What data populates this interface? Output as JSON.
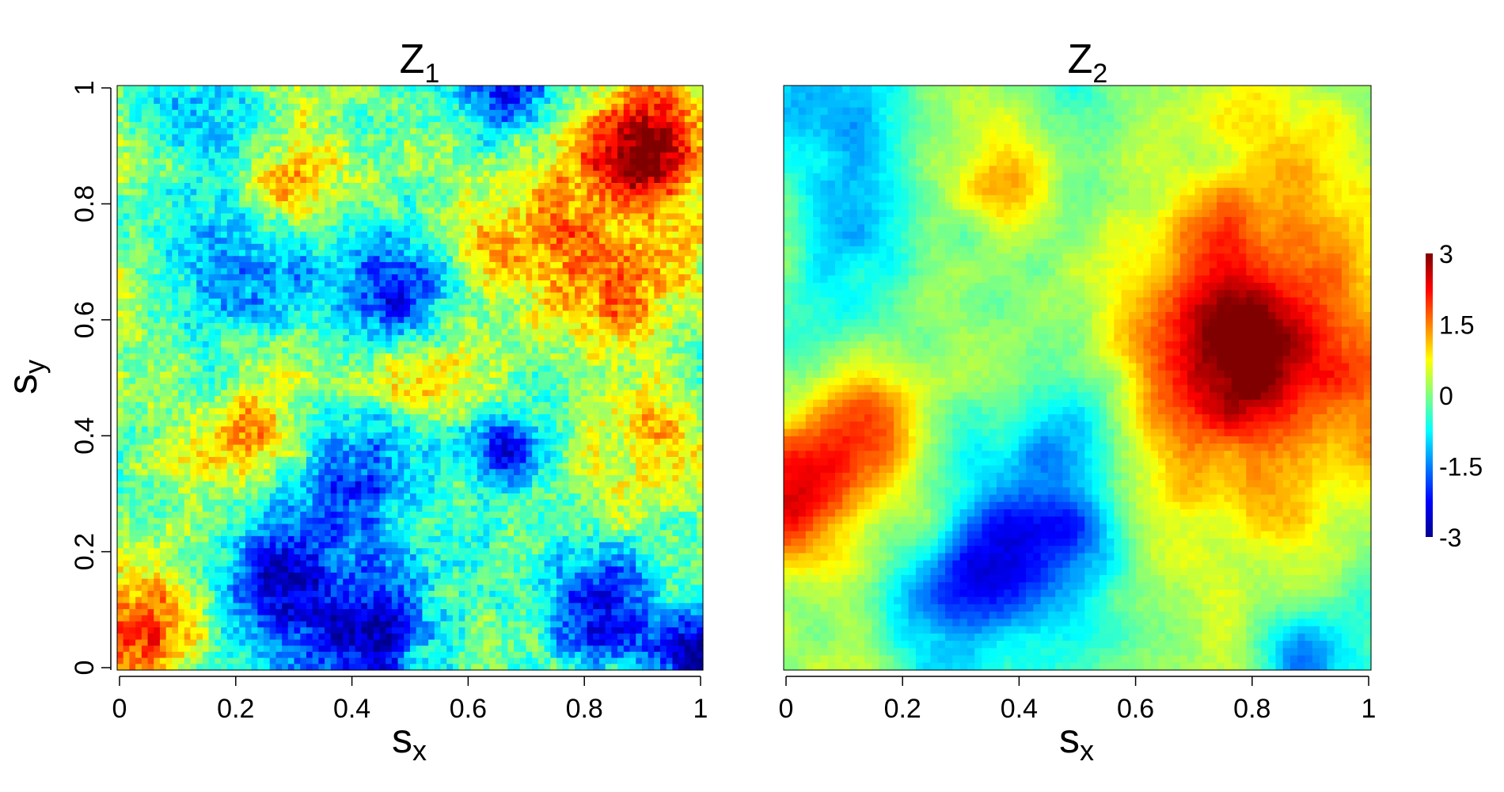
{
  "chart_data": [
    {
      "type": "heatmap",
      "title": "Z",
      "title_subscript": "1",
      "xlabel": "s",
      "xlabel_subscript": "x",
      "ylabel": "s",
      "ylabel_subscript": "y",
      "xlim": [
        0,
        1
      ],
      "ylim": [
        0,
        1
      ],
      "x_ticks": [
        "0",
        "0.2",
        "0.4",
        "0.6",
        "0.8",
        "1"
      ],
      "y_ticks": [
        "0",
        "0.2",
        "0.4",
        "0.6",
        "0.8",
        "1"
      ],
      "grid": false,
      "texture": "rough",
      "field_features": [
        {
          "x": 0.91,
          "y": 0.9,
          "value": 2.8,
          "spread": 0.07
        },
        {
          "x": 0.3,
          "y": 0.84,
          "value": 1.6,
          "spread": 0.07
        },
        {
          "x": 0.8,
          "y": 0.7,
          "value": 1.7,
          "spread": 0.12
        },
        {
          "x": 0.05,
          "y": 0.08,
          "value": 1.9,
          "spread": 0.07
        },
        {
          "x": 0.23,
          "y": 0.4,
          "value": 1.2,
          "spread": 0.06
        },
        {
          "x": 0.5,
          "y": 0.5,
          "value": 1.0,
          "spread": 0.05
        },
        {
          "x": 0.95,
          "y": 0.4,
          "value": 1.0,
          "spread": 0.06
        },
        {
          "x": 0.65,
          "y": 0.98,
          "value": -2.2,
          "spread": 0.06
        },
        {
          "x": 0.22,
          "y": 0.72,
          "value": -1.8,
          "spread": 0.08
        },
        {
          "x": 0.45,
          "y": 0.64,
          "value": -2.3,
          "spread": 0.07
        },
        {
          "x": 0.28,
          "y": 0.15,
          "value": -2.1,
          "spread": 0.08
        },
        {
          "x": 0.42,
          "y": 0.05,
          "value": -2.5,
          "spread": 0.07
        },
        {
          "x": 0.4,
          "y": 0.28,
          "value": -1.8,
          "spread": 0.1
        },
        {
          "x": 0.68,
          "y": 0.38,
          "value": -2.0,
          "spread": 0.05
        },
        {
          "x": 0.83,
          "y": 0.1,
          "value": -2.3,
          "spread": 0.08
        },
        {
          "x": 0.98,
          "y": 0.03,
          "value": -2.5,
          "spread": 0.05
        },
        {
          "x": 0.18,
          "y": 0.95,
          "value": -1.2,
          "spread": 0.08
        }
      ]
    },
    {
      "type": "heatmap",
      "title": "Z",
      "title_subscript": "2",
      "xlabel": "s",
      "xlabel_subscript": "x",
      "xlim": [
        0,
        1
      ],
      "ylim": [
        0,
        1
      ],
      "x_ticks": [
        "0",
        "0.2",
        "0.4",
        "0.6",
        "0.8",
        "1"
      ],
      "grid": false,
      "texture": "smooth",
      "field_features": [
        {
          "x": 0.84,
          "y": 0.55,
          "value": 2.3,
          "spread": 0.2
        },
        {
          "x": 0.77,
          "y": 0.52,
          "value": 1.4,
          "spread": 0.08
        },
        {
          "x": 0.86,
          "y": 0.88,
          "value": 0.7,
          "spread": 0.1
        },
        {
          "x": 0.05,
          "y": 0.32,
          "value": 2.4,
          "spread": 0.09
        },
        {
          "x": 0.15,
          "y": 0.45,
          "value": 1.3,
          "spread": 0.07
        },
        {
          "x": 0.37,
          "y": 0.82,
          "value": 1.2,
          "spread": 0.06
        },
        {
          "x": 0.42,
          "y": 0.22,
          "value": -2.2,
          "spread": 0.1
        },
        {
          "x": 0.28,
          "y": 0.12,
          "value": -1.4,
          "spread": 0.08
        },
        {
          "x": 0.5,
          "y": 0.4,
          "value": -1.0,
          "spread": 0.07
        },
        {
          "x": 0.1,
          "y": 0.9,
          "value": -1.0,
          "spread": 0.12
        },
        {
          "x": 0.1,
          "y": 0.62,
          "value": -0.9,
          "spread": 0.08
        },
        {
          "x": 0.9,
          "y": 0.03,
          "value": -1.2,
          "spread": 0.07
        }
      ]
    }
  ],
  "colorbar": {
    "ticks": [
      "3",
      "1.5",
      "0",
      "-1.5",
      "-3"
    ],
    "range": [
      -3,
      3
    ],
    "colors": [
      "#00008f",
      "#0000ff",
      "#0080ff",
      "#00ffff",
      "#80ff80",
      "#ffff00",
      "#ff8000",
      "#ff0000",
      "#800000"
    ]
  }
}
